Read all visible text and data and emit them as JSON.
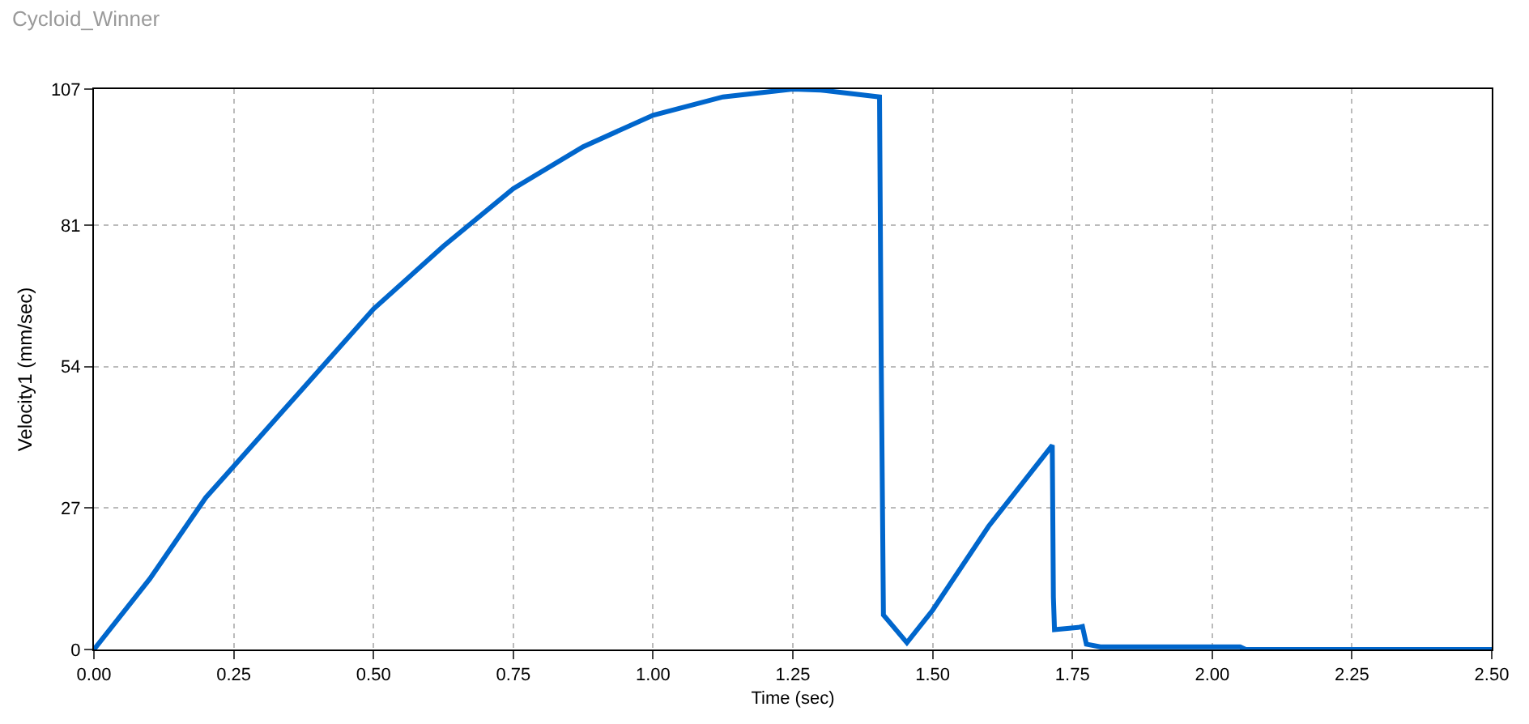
{
  "chart_data": {
    "type": "line",
    "title": "Cycloid_Winner",
    "xlabel": "Time (sec)",
    "ylabel": "Velocity1 (mm/sec)",
    "x": [
      0,
      0.1,
      0.2,
      0.25,
      0.375,
      0.5,
      0.625,
      0.75,
      0.875,
      1.0,
      1.125,
      1.25,
      1.3,
      1.35,
      1.405,
      1.408,
      1.412,
      1.454,
      1.5,
      1.6,
      1.714,
      1.716,
      1.718,
      1.76,
      1.768,
      1.775,
      1.8,
      2.05,
      2.06,
      2.5
    ],
    "series": [
      {
        "color": "#0066cc",
        "values": [
          0,
          13.5,
          29,
          35,
          50,
          65,
          77,
          88,
          96,
          102,
          105.5,
          107,
          106.8,
          106.2,
          105.5,
          56,
          6.6,
          1.3,
          7.5,
          23.5,
          39,
          10,
          3.8,
          4.2,
          4.4,
          1,
          0.5,
          0.5,
          0,
          0
        ]
      }
    ],
    "xlim": [
      0,
      2.5
    ],
    "xticks": [
      {
        "value": 0,
        "label": "0.00"
      },
      0.25,
      {
        "value": 0.5,
        "label": "0.50"
      },
      0.75,
      {
        "value": 1,
        "label": "1.00"
      },
      1.25,
      {
        "value": 1.5,
        "label": "1.50"
      },
      1.75,
      {
        "value": 2,
        "label": "2.00"
      },
      2.25,
      {
        "value": 2.5,
        "label": "2.50"
      }
    ],
    "ylim": [
      0,
      107
    ],
    "yticks": [
      0,
      27,
      54,
      81,
      107
    ],
    "grid": true,
    "marker": "none",
    "line_style": "solid"
  }
}
